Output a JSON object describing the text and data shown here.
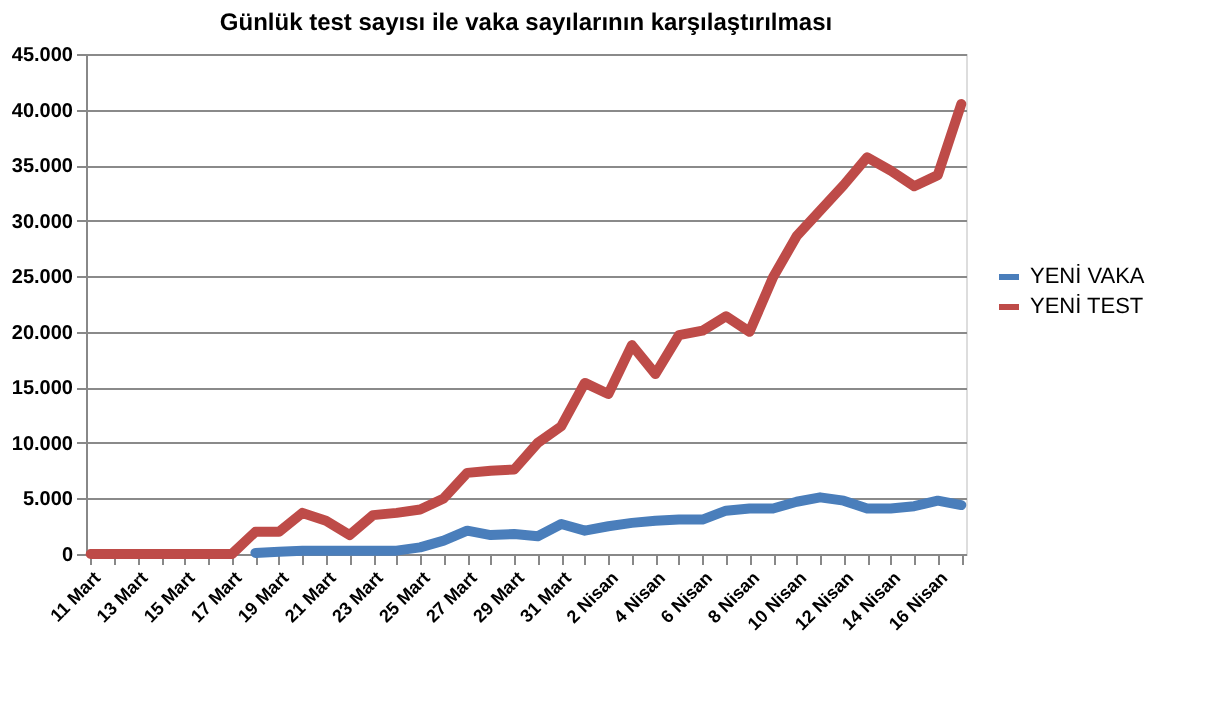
{
  "chart_data": {
    "type": "line",
    "title": "Günlük test sayısı ile vaka sayılarının karşılaştırılması",
    "categories": [
      "11 Mart",
      null,
      "13 Mart",
      null,
      "15 Mart",
      null,
      "17 Mart",
      null,
      "19 Mart",
      null,
      "21 Mart",
      null,
      "23 Mart",
      null,
      "25 Mart",
      null,
      "27 Mart",
      null,
      "29 Mart",
      null,
      "31 Mart",
      null,
      "2 Nisan",
      null,
      "4 Nisan",
      null,
      "6 Nisan",
      null,
      "8 Nisan",
      null,
      "10 Nisan",
      null,
      "12 Nisan",
      null,
      "14 Nisan",
      null,
      "16 Nisan",
      null
    ],
    "series": [
      {
        "name": "YENİ VAKA",
        "color": "#4a7ebb",
        "values": [
          null,
          null,
          null,
          null,
          null,
          null,
          null,
          100,
          200,
          300,
          300,
          300,
          300,
          300,
          600,
          1200,
          2100,
          1700,
          1800,
          1600,
          2700,
          2100,
          2500,
          2800,
          3000,
          3100,
          3100,
          3900,
          4100,
          4100,
          4700,
          5100,
          4800,
          4100,
          4100,
          4300,
          4800,
          4400
        ]
      },
      {
        "name": "YENİ TEST",
        "color": "#be4b48",
        "values": [
          0,
          0,
          0,
          0,
          0,
          0,
          0,
          2000,
          2000,
          3700,
          3000,
          1700,
          3500,
          3700,
          4000,
          5000,
          7300,
          7500,
          7600,
          10000,
          11500,
          15400,
          14400,
          18800,
          16200,
          19700,
          20100,
          21400,
          20000,
          24900,
          28600,
          30900,
          33200,
          35700,
          34500,
          33100,
          34100,
          40500
        ]
      }
    ],
    "ylim": [
      0,
      45000
    ],
    "yticks": [
      0,
      {
        "value": 5000,
        "label": "5.000"
      },
      {
        "value": 10000,
        "label": "10.000"
      },
      {
        "value": 15000,
        "label": "15.000"
      },
      {
        "value": 20000,
        "label": "20.000"
      },
      {
        "value": 25000,
        "label": "25.000"
      },
      {
        "value": 30000,
        "label": "30.000"
      },
      {
        "value": 35000,
        "label": "35.000"
      },
      {
        "value": 40000,
        "label": "40.000"
      },
      {
        "value": 45000,
        "label": "45.000"
      }
    ],
    "grid": "y",
    "legend": "right",
    "marker": "none",
    "line_style": "solid"
  }
}
